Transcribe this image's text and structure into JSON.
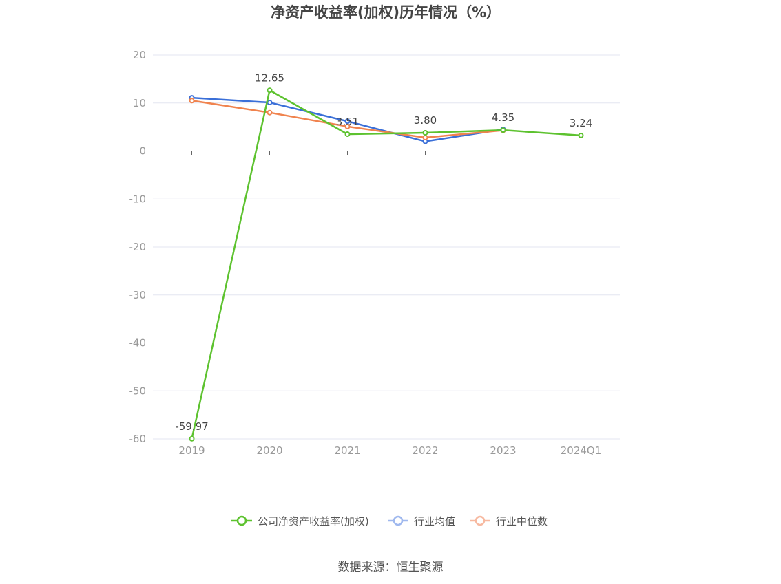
{
  "chart_data": {
    "type": "line",
    "title": "净资产收益率(加权)历年情况（%）",
    "categories": [
      "2019",
      "2020",
      "2021",
      "2022",
      "2023",
      "2024Q1"
    ],
    "ylim": [
      -60,
      20
    ],
    "yticks": [
      20,
      10,
      0,
      -10,
      -20,
      -30,
      -40,
      -50,
      -60
    ],
    "grid": true,
    "legend_position": "bottom",
    "series": [
      {
        "name": "公司净资产收益率(加权)",
        "color": "#5dc22f",
        "values": [
          -59.97,
          12.65,
          3.51,
          3.8,
          4.35,
          3.24
        ],
        "labels": [
          "-59.97",
          "12.65",
          "3.51",
          "3.80",
          "4.35",
          "3.24"
        ]
      },
      {
        "name": "行业均值",
        "color": "#3a6fd8",
        "legend_color": "#9fb8ee",
        "values": [
          11.1,
          10.1,
          6.2,
          2.0,
          4.5,
          null
        ]
      },
      {
        "name": "行业中位数",
        "color": "#f0834e",
        "legend_color": "#f7b9a0",
        "values": [
          10.5,
          8.0,
          5.1,
          2.8,
          4.3,
          null
        ]
      }
    ],
    "source": "数据来源：恒生聚源"
  }
}
